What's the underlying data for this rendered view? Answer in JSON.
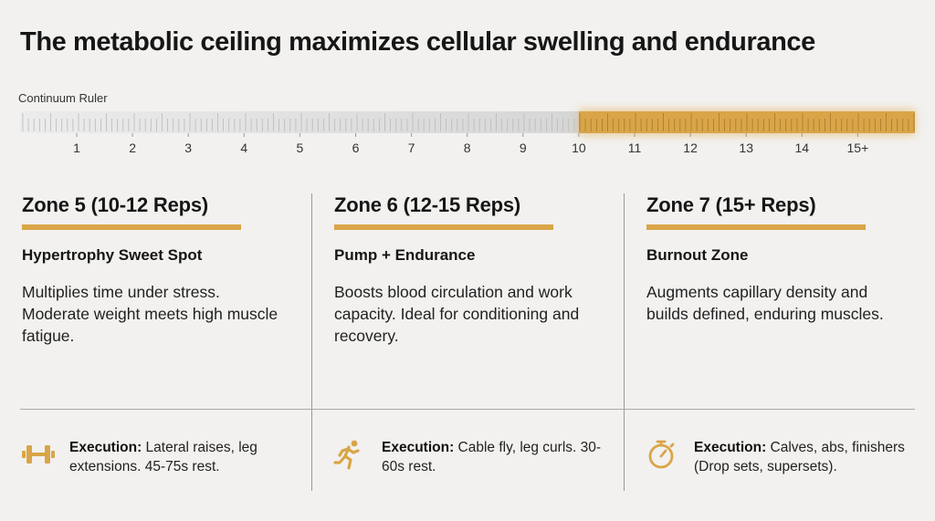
{
  "title": "The metabolic ceiling maximizes cellular swelling and endurance",
  "ruler": {
    "label": "Continuum Ruler",
    "ticks": [
      "1",
      "2",
      "3",
      "4",
      "5",
      "6",
      "7",
      "8",
      "9",
      "10",
      "11",
      "12",
      "13",
      "14",
      "15+"
    ],
    "highlight_from": "10",
    "colors": {
      "track": "#dcdcdc",
      "highlight": "#d9a548"
    }
  },
  "zones": [
    {
      "title": "Zone 5 (10-12 Reps)",
      "subtitle": "Hypertrophy Sweet Spot",
      "description": "Multiplies time under stress. Moderate weight meets high muscle fatigue.",
      "execution_label": "Execution:",
      "execution_text": "Lateral raises, leg extensions. 45-75s rest.",
      "icon": "dumbbell-icon"
    },
    {
      "title": "Zone 6 (12-15 Reps)",
      "subtitle": "Pump + Endurance",
      "description": "Boosts blood circulation and work capacity. Ideal for conditioning and recovery.",
      "execution_label": "Execution:",
      "execution_text": "Cable fly, leg curls. 30-60s rest.",
      "icon": "running-person-icon"
    },
    {
      "title": "Zone 7 (15+ Reps)",
      "subtitle": "Burnout Zone",
      "description": "Augments capillary density and builds defined, enduring muscles.",
      "execution_label": "Execution:",
      "execution_text": "Calves, abs, finishers (Drop sets, supersets).",
      "icon": "stopwatch-icon"
    }
  ],
  "accent_color": "#d9a548"
}
